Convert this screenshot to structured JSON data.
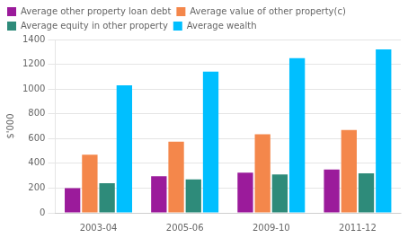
{
  "chart_data": {
    "type": "bar",
    "ylabel": "$'000",
    "categories": [
      "2003-04",
      "2005-06",
      "2009-10",
      "2011-12"
    ],
    "series": [
      {
        "name": "Average other property loan debt",
        "color": "#9B1B9B",
        "values": [
          200,
          295,
          325,
          350
        ]
      },
      {
        "name": "Average value of other property(c)",
        "color": "#F4874B",
        "values": [
          470,
          575,
          635,
          670
        ]
      },
      {
        "name": "Average equity in other property",
        "color": "#2E8B7A",
        "values": [
          240,
          270,
          310,
          320
        ]
      },
      {
        "name": "Average wealth",
        "color": "#00BFFF",
        "values": [
          1030,
          1140,
          1250,
          1320
        ]
      }
    ],
    "ylim": [
      0,
      1400
    ],
    "yticks": [
      0,
      200,
      400,
      600,
      800,
      1000,
      1200,
      1400
    ],
    "grid": true,
    "legend": "upper left"
  }
}
